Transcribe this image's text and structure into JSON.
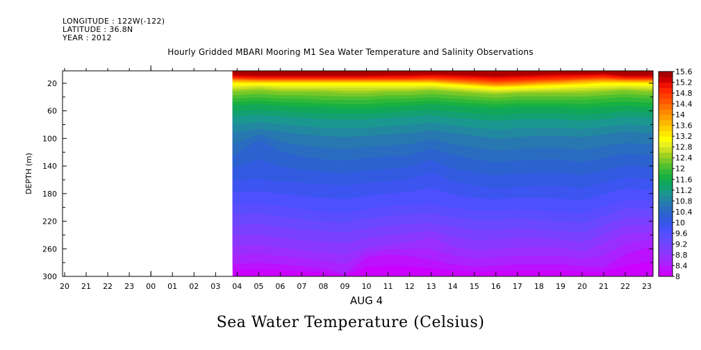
{
  "header": {
    "longitude": "LONGITUDE : 122W(-122)",
    "latitude": "LATITUDE : 36.8N",
    "year": "YEAR : 2012"
  },
  "chart_data": {
    "type": "heatmap",
    "title": "Hourly Gridded MBARI Mooring M1 Sea Water Temperature and Salinity Observations",
    "subtitle": "Sea Water Temperature (Celsius)",
    "xlabel": "AUG  4",
    "ylabel": "DEPTH (m)",
    "x_tick_labels": [
      "20",
      "21",
      "22",
      "23",
      "00",
      "01",
      "02",
      "03",
      "04",
      "05",
      "06",
      "07",
      "08",
      "09",
      "10",
      "11",
      "12",
      "13",
      "14",
      "15",
      "16",
      "17",
      "18",
      "19",
      "20",
      "21",
      "22",
      "23"
    ],
    "x_range_hours": [
      20,
      47
    ],
    "data_start_hour": 27.8,
    "y_ticks": [
      20,
      60,
      100,
      140,
      180,
      220,
      260,
      300
    ],
    "ylim": [
      300,
      2
    ],
    "colorbar": {
      "levels": [
        8,
        8.2,
        8.4,
        8.6,
        8.8,
        9.0,
        9.2,
        9.4,
        9.6,
        9.8,
        10.0,
        10.2,
        10.4,
        10.6,
        10.8,
        11.0,
        11.2,
        11.4,
        11.6,
        11.8,
        12.0,
        12.2,
        12.4,
        12.6,
        12.8,
        13.0,
        13.2,
        13.4,
        13.6,
        13.8,
        14.0,
        14.2,
        14.4,
        14.6,
        14.8,
        15.0,
        15.2,
        15.4,
        15.6
      ],
      "labels": [
        "8",
        "8.4",
        "8.8",
        "9.2",
        "9.6",
        "10",
        "10.4",
        "10.8",
        "11.2",
        "11.6",
        "12",
        "12.4",
        "12.8",
        "13.2",
        "13.6",
        "14",
        "14.4",
        "14.8",
        "15.2",
        "15.6"
      ],
      "colors": [
        "#cc00ff",
        "#bb11ff",
        "#aa22ff",
        "#9a2eff",
        "#8a38ff",
        "#7a40ff",
        "#6a48ff",
        "#5a4cff",
        "#4c50ff",
        "#3d55f0",
        "#325ae0",
        "#2c62d0",
        "#2a6cc0",
        "#2778b0",
        "#2288a0",
        "#1a9890",
        "#12a070",
        "#10a858",
        "#18b040",
        "#30b838",
        "#50c030",
        "#78c828",
        "#a0d020",
        "#c8e020",
        "#e8f020",
        "#ffff00",
        "#ffe800",
        "#ffd000",
        "#ffb800",
        "#ffa000",
        "#ff8800",
        "#ff7000",
        "#ff5800",
        "#ff4000",
        "#ff2800",
        "#ee1000",
        "#cc0000",
        "#aa0000"
      ]
    },
    "isotherm_profiles": {
      "hours": [
        27.8,
        29,
        30,
        31,
        32,
        33,
        34,
        35,
        36,
        37,
        38,
        39,
        40,
        41,
        42,
        43,
        44,
        45,
        46,
        47
      ],
      "depths_by_level": {
        "8.0": [
          300,
          300,
          300,
          300,
          300,
          300,
          300,
          300,
          300,
          300,
          300,
          300,
          300,
          300,
          300,
          300,
          300,
          300,
          300,
          300
        ],
        "8.4": [
          282,
          280,
          282,
          285,
          288,
          296,
          272,
          268,
          270,
          276,
          282,
          286,
          284,
          282,
          282,
          282,
          285,
          286,
          268,
          258
        ],
        "8.8": [
          255,
          254,
          258,
          262,
          265,
          268,
          258,
          254,
          250,
          244,
          256,
          262,
          260,
          258,
          257,
          258,
          264,
          252,
          238,
          236
        ],
        "9.2": [
          225,
          224,
          228,
          232,
          234,
          236,
          230,
          226,
          224,
          222,
          228,
          232,
          232,
          230,
          232,
          234,
          236,
          226,
          214,
          214
        ],
        "9.6": [
          195,
          194,
          198,
          202,
          206,
          208,
          202,
          198,
          196,
          194,
          200,
          204,
          204,
          202,
          204,
          206,
          208,
          198,
          188,
          190
        ],
        "10.0": [
          160,
          158,
          162,
          164,
          166,
          168,
          164,
          162,
          158,
          148,
          162,
          168,
          172,
          170,
          168,
          168,
          172,
          164,
          156,
          158
        ],
        "10.4": [
          125,
          102,
          118,
          126,
          130,
          132,
          128,
          126,
          124,
          114,
          124,
          130,
          134,
          132,
          130,
          130,
          134,
          128,
          122,
          124
        ],
        "10.8": [
          92,
          86,
          90,
          94,
          96,
          98,
          96,
          94,
          92,
          88,
          92,
          96,
          100,
          98,
          96,
          96,
          98,
          94,
          90,
          92
        ],
        "11.2": [
          68,
          66,
          68,
          70,
          72,
          72,
          72,
          70,
          68,
          66,
          70,
          72,
          74,
          72,
          72,
          72,
          74,
          72,
          68,
          70
        ],
        "11.6": [
          52,
          50,
          52,
          54,
          54,
          56,
          56,
          54,
          52,
          50,
          52,
          54,
          56,
          54,
          54,
          54,
          56,
          54,
          52,
          54
        ],
        "12.0": [
          42,
          40,
          42,
          42,
          44,
          44,
          44,
          42,
          42,
          40,
          42,
          44,
          46,
          44,
          44,
          44,
          44,
          42,
          40,
          42
        ],
        "12.4": [
          32,
          30,
          32,
          32,
          32,
          34,
          34,
          32,
          32,
          30,
          32,
          34,
          36,
          34,
          34,
          34,
          34,
          32,
          30,
          32
        ],
        "12.8": [
          26,
          24,
          26,
          26,
          26,
          26,
          26,
          26,
          26,
          25,
          27,
          29,
          31,
          30,
          29,
          28,
          27,
          26,
          25,
          26
        ],
        "13.2": [
          20,
          20,
          20,
          20,
          20,
          20,
          20,
          20,
          20,
          20,
          22,
          24,
          26,
          25,
          24,
          23,
          22,
          20,
          20,
          20
        ],
        "14.0": [
          15,
          16,
          16,
          16,
          16,
          16,
          16,
          16,
          16,
          16,
          18,
          20,
          22,
          21,
          19,
          18,
          16,
          15,
          16,
          16
        ],
        "14.8": [
          12,
          13,
          13,
          13,
          13,
          13,
          13,
          13,
          13,
          12,
          13,
          14,
          16,
          15,
          14,
          13,
          12,
          11,
          13,
          13
        ],
        "15.2": [
          9,
          10,
          10,
          10,
          10,
          10,
          10,
          9,
          9,
          8,
          9,
          10,
          11,
          10,
          9,
          8,
          8,
          7,
          10,
          10
        ],
        "15.6": [
          5,
          6,
          6,
          6,
          6,
          6,
          6,
          5,
          5,
          4,
          5,
          6,
          7,
          6,
          5,
          4,
          4,
          4,
          6,
          6
        ]
      }
    }
  }
}
